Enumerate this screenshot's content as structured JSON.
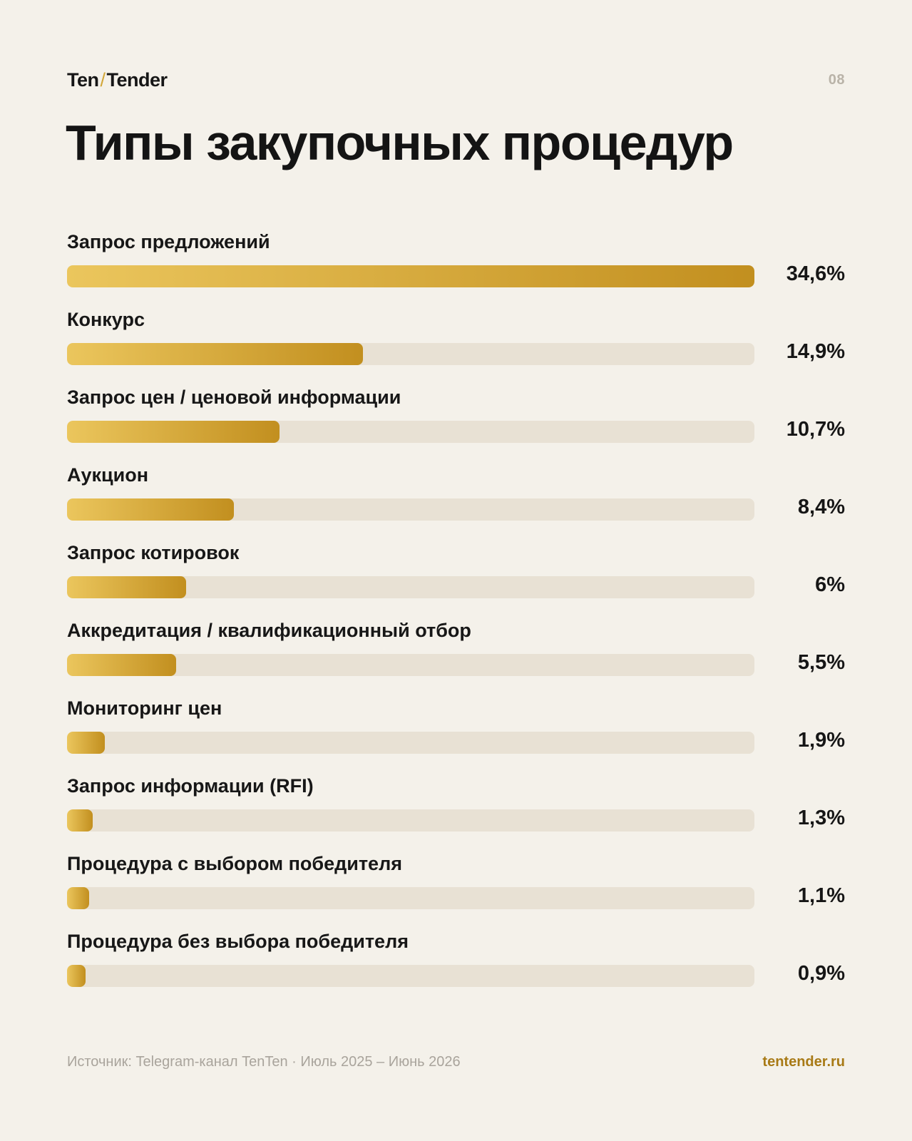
{
  "header": {
    "logo_left": "Ten",
    "logo_slash": "/",
    "logo_right": "Tender",
    "page_number": "08"
  },
  "title": "Типы закупочных процедур",
  "chart_data": {
    "type": "bar",
    "orientation": "horizontal",
    "categories": [
      "Запрос предложений",
      "Конкурс",
      "Запрос цен / ценовой информации",
      "Аукцион",
      "Запрос котировок",
      "Аккредитация / квалификационный отбор",
      "Мониторинг цен",
      "Запрос информации (RFI)",
      "Процедура с выбором победителя",
      "Процедура без выбора победителя"
    ],
    "values": [
      34.6,
      14.9,
      10.7,
      8.4,
      6,
      5.5,
      1.9,
      1.3,
      1.1,
      0.9
    ],
    "value_labels": [
      "34,6%",
      "14,9%",
      "10,7%",
      "8,4%",
      "6%",
      "5,5%",
      "1,9%",
      "1,3%",
      "1,1%",
      "0,9%"
    ],
    "xlim": [
      0,
      34.6
    ],
    "grid": false,
    "colors": {
      "bar_start": "#ebc65d",
      "bar_end": "#c28f1f",
      "track": "#e8e1d4"
    }
  },
  "footer": {
    "source": "Источник: Telegram-канал TenTen · Июль 2025 – Июнь 2026",
    "site": "tentender.ru"
  }
}
